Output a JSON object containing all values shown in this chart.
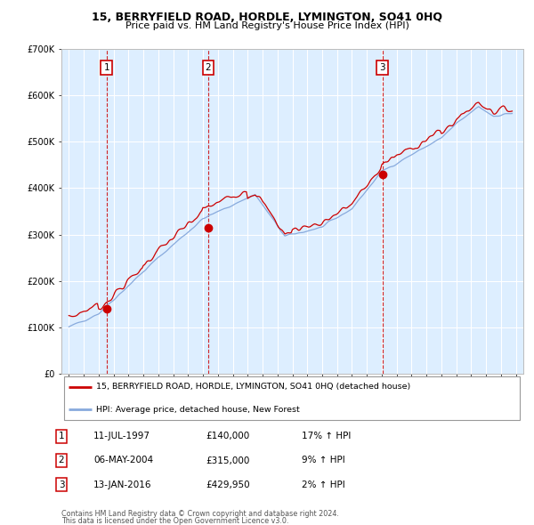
{
  "title": "15, BERRYFIELD ROAD, HORDLE, LYMINGTON, SO41 0HQ",
  "subtitle": "Price paid vs. HM Land Registry's House Price Index (HPI)",
  "legend_line1": "15, BERRYFIELD ROAD, HORDLE, LYMINGTON, SO41 0HQ (detached house)",
  "legend_line2": "HPI: Average price, detached house, New Forest",
  "footer_line1": "Contains HM Land Registry data © Crown copyright and database right 2024.",
  "footer_line2": "This data is licensed under the Open Government Licence v3.0.",
  "sales": [
    {
      "num": 1,
      "date": "11-JUL-1997",
      "price": "£140,000",
      "pct": "17%",
      "dir": "↑",
      "year": 1997.53,
      "sale_price": 140000
    },
    {
      "num": 2,
      "date": "06-MAY-2004",
      "price": "£315,000",
      "pct": "9%",
      "dir": "↑",
      "year": 2004.35,
      "sale_price": 315000
    },
    {
      "num": 3,
      "date": "13-JAN-2016",
      "price": "£429,950",
      "pct": "2%",
      "dir": "↑",
      "year": 2016.04,
      "sale_price": 429950
    }
  ],
  "red_line_color": "#cc0000",
  "blue_line_color": "#88aadd",
  "sale_dot_color": "#cc0000",
  "bg_color": "#ddeeff",
  "grid_color": "#ffffff",
  "vline_color": "#cc0000",
  "box_edge_color": "#cc0000",
  "ylim": [
    0,
    700000
  ],
  "xlim": [
    1994.5,
    2025.5
  ],
  "yticks": [
    0,
    100000,
    200000,
    300000,
    400000,
    500000,
    600000,
    700000
  ],
  "ytick_labels": [
    "£0",
    "£100K",
    "£200K",
    "£300K",
    "£400K",
    "£500K",
    "£600K",
    "£700K"
  ],
  "xticks": [
    1995,
    1996,
    1997,
    1998,
    1999,
    2000,
    2001,
    2002,
    2003,
    2004,
    2005,
    2006,
    2007,
    2008,
    2009,
    2010,
    2011,
    2012,
    2013,
    2014,
    2015,
    2016,
    2017,
    2018,
    2019,
    2020,
    2021,
    2022,
    2023,
    2024,
    2025
  ]
}
